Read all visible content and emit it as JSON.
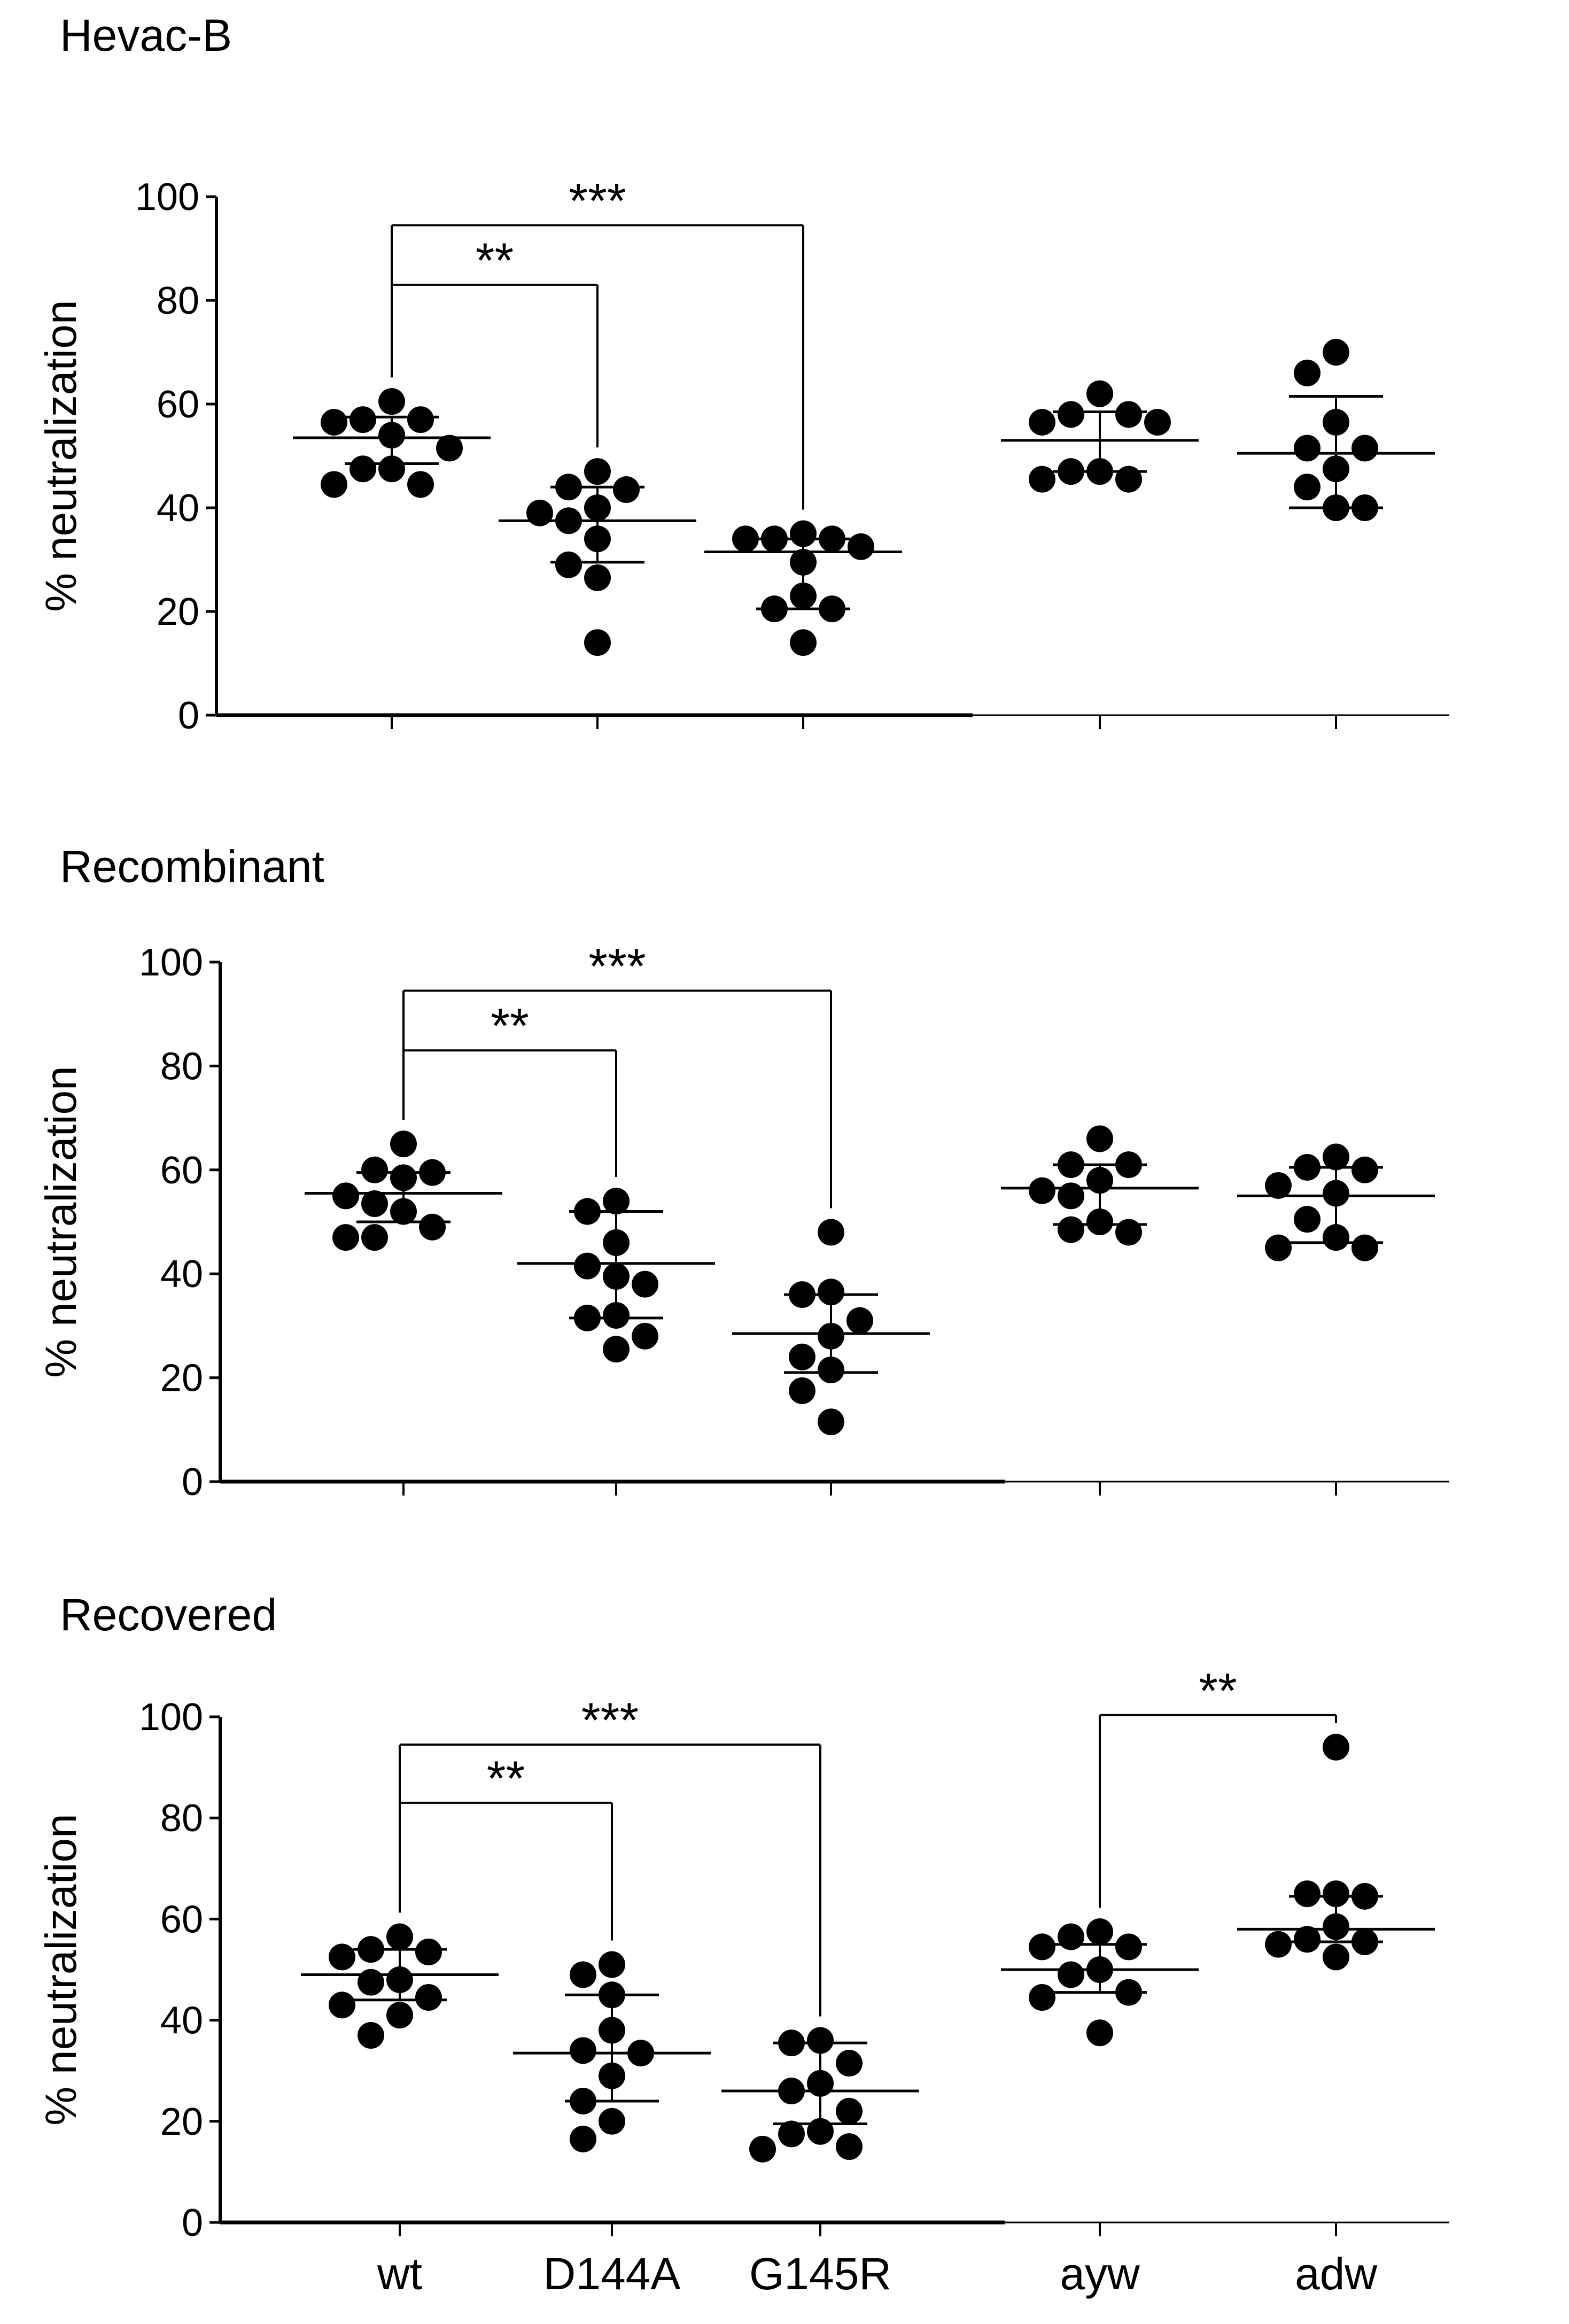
{
  "figure": {
    "categories": [
      "wt",
      "D144A",
      "G145R",
      "ayw",
      "adw"
    ]
  },
  "chart_data": [
    {
      "type": "scatter",
      "title": "Hevac-B",
      "xlabel": "",
      "ylabel": "% neutralization",
      "ylim": [
        0,
        100
      ],
      "yticks": [
        "0",
        "20",
        "40",
        "60",
        "80",
        "100"
      ],
      "categories": [
        "wt",
        "D144A",
        "G145R",
        "ayw",
        "adw"
      ],
      "show_category_labels": false,
      "groups": [
        {
          "category": "wt",
          "mean": 53.5,
          "sd_low": 48.5,
          "sd_high": 57.5,
          "points": [
            57,
            60.5,
            56.5,
            57,
            51.5,
            54,
            47.5,
            47.5,
            44.5,
            44.5
          ]
        },
        {
          "category": "D144A",
          "mean": 37.5,
          "sd_low": 29.5,
          "sd_high": 44,
          "points": [
            44,
            43.5,
            47,
            39,
            37.5,
            34,
            29,
            26.5,
            14,
            40
          ]
        },
        {
          "category": "G145R",
          "mean": 31.5,
          "sd_low": 20.5,
          "sd_high": 34,
          "points": [
            35,
            34,
            34,
            34,
            32.5,
            29.5,
            23,
            20.5,
            20.5,
            14
          ]
        },
        {
          "category": "ayw",
          "mean": 53,
          "sd_low": 47,
          "sd_high": 58.5,
          "points": [
            62,
            58,
            58,
            56.5,
            56.5,
            47,
            47,
            45.5,
            45.5
          ]
        },
        {
          "category": "adw",
          "mean": 50.5,
          "sd_low": 40,
          "sd_high": 61.5,
          "points": [
            70,
            66,
            56.5,
            51.5,
            51.5,
            47.5,
            44,
            40,
            40
          ]
        }
      ],
      "comparisons": [
        {
          "from": "wt",
          "to": "D144A",
          "label": "**"
        },
        {
          "from": "wt",
          "to": "G145R",
          "label": "***"
        }
      ]
    },
    {
      "type": "scatter",
      "title": "Recombinant",
      "xlabel": "",
      "ylabel": "% neutralization",
      "ylim": [
        0,
        100
      ],
      "yticks": [
        "0",
        "20",
        "40",
        "60",
        "80",
        "100"
      ],
      "categories": [
        "wt",
        "D144A",
        "G145R",
        "ayw",
        "adw"
      ],
      "show_category_labels": false,
      "groups": [
        {
          "category": "wt",
          "mean": 55.5,
          "sd_low": 50,
          "sd_high": 59.5,
          "points": [
            65,
            60,
            59.5,
            58.5,
            55,
            53.5,
            52,
            49,
            47,
            47
          ]
        },
        {
          "category": "D144A",
          "mean": 42,
          "sd_low": 31.5,
          "sd_high": 52,
          "points": [
            54,
            52,
            46,
            41.5,
            39.5,
            38,
            32,
            31.5,
            28,
            25.5
          ]
        },
        {
          "category": "G145R",
          "mean": 28.5,
          "sd_low": 21,
          "sd_high": 36,
          "points": [
            48,
            36.5,
            36,
            31,
            28,
            24,
            21.5,
            17.5,
            11.5
          ]
        },
        {
          "category": "ayw",
          "mean": 56.5,
          "sd_low": 49.5,
          "sd_high": 61,
          "points": [
            66,
            61,
            61,
            58,
            56,
            55,
            50,
            48.5,
            48
          ]
        },
        {
          "category": "adw",
          "mean": 55,
          "sd_low": 46,
          "sd_high": 60.5,
          "points": [
            62.5,
            60.5,
            60,
            57,
            55.5,
            50.5,
            47,
            45,
            45
          ]
        }
      ],
      "comparisons": [
        {
          "from": "wt",
          "to": "D144A",
          "label": "**"
        },
        {
          "from": "wt",
          "to": "G145R",
          "label": "***"
        }
      ]
    },
    {
      "type": "scatter",
      "title": "Recovered",
      "xlabel": "",
      "ylabel": "% neutralization",
      "ylim": [
        0,
        100
      ],
      "yticks": [
        "0",
        "20",
        "40",
        "60",
        "80",
        "100"
      ],
      "categories": [
        "wt",
        "D144A",
        "G145R",
        "ayw",
        "adw"
      ],
      "show_category_labels": true,
      "groups": [
        {
          "category": "wt",
          "mean": 49,
          "sd_low": 44,
          "sd_high": 54,
          "points": [
            56.5,
            54,
            53.5,
            52.5,
            48,
            47.5,
            44.5,
            43,
            41,
            37
          ]
        },
        {
          "category": "D144A",
          "mean": 33.5,
          "sd_low": 24,
          "sd_high": 45,
          "points": [
            51,
            49,
            45,
            38,
            34,
            33.5,
            29,
            24,
            20,
            16.5
          ]
        },
        {
          "category": "G145R",
          "mean": 26,
          "sd_low": 19.5,
          "sd_high": 35.5,
          "points": [
            36,
            35.5,
            31.5,
            27.5,
            26,
            22,
            18,
            17.5,
            15,
            14.5
          ]
        },
        {
          "category": "ayw",
          "mean": 50,
          "sd_low": 45.5,
          "sd_high": 55,
          "points": [
            57.5,
            56.5,
            54.5,
            54.5,
            50,
            49,
            45.5,
            44.5,
            37.5
          ]
        },
        {
          "category": "adw",
          "mean": 58,
          "sd_low": 55.5,
          "sd_high": 64.5,
          "points": [
            94,
            65,
            65,
            64.5,
            58.5,
            56,
            55.5,
            55,
            52.5
          ]
        }
      ],
      "comparisons": [
        {
          "from": "wt",
          "to": "D144A",
          "label": "**"
        },
        {
          "from": "wt",
          "to": "G145R",
          "label": "***"
        },
        {
          "from": "ayw",
          "to": "adw",
          "label": "**"
        }
      ]
    }
  ]
}
